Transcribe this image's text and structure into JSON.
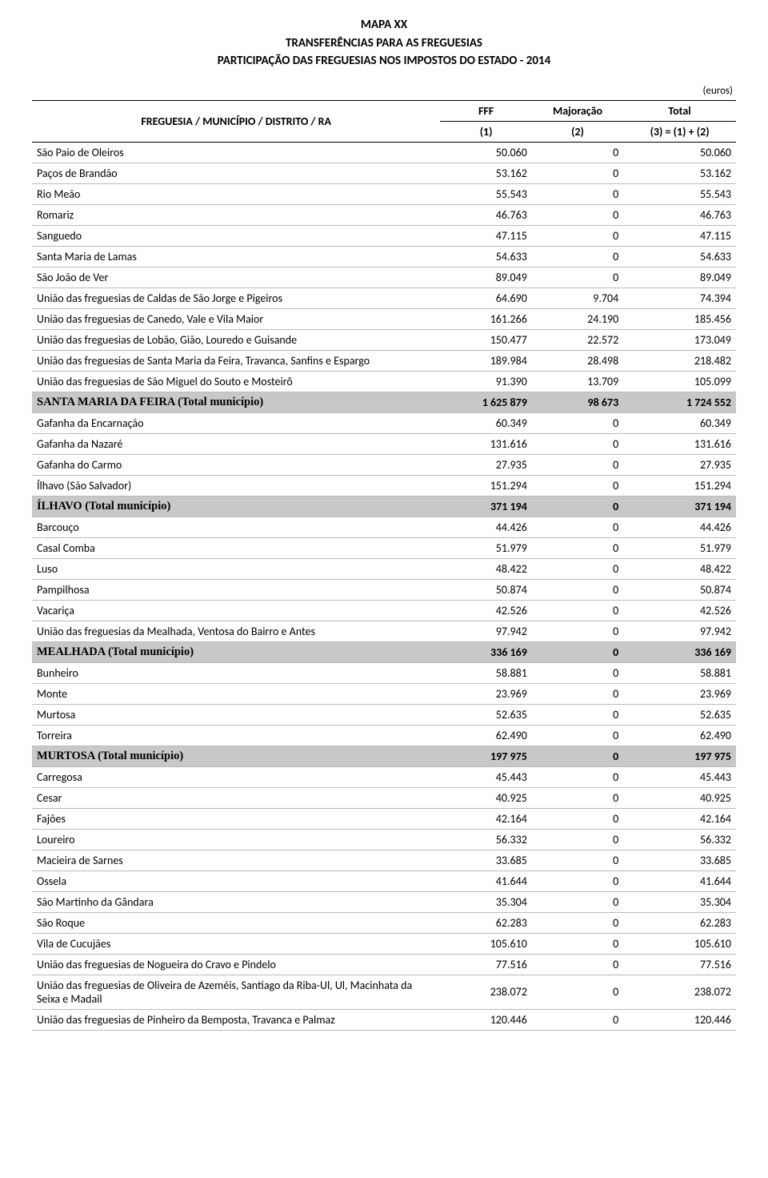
{
  "header": {
    "line1": "MAPA XX",
    "line2": "TRANSFERÊNCIAS PARA AS FREGUESIAS",
    "line3": "PARTICIPAÇÃO DAS FREGUESIAS NOS IMPOSTOS DO ESTADO - 2014",
    "currency_label": "(euros)"
  },
  "table": {
    "columns": {
      "name": "FREGUESIA / MUNICÍPIO / DISTRITO / RA",
      "fff": "FFF",
      "maj": "Majoração",
      "tot": "Total",
      "sub1": "(1)",
      "sub2": "(2)",
      "sub3": "(3) = (1) + (2)"
    },
    "rows": [
      {
        "name": "São Paio de Oleiros",
        "fff": "50.060",
        "maj": "0",
        "tot": "50.060",
        "total": false
      },
      {
        "name": "Paços de Brandão",
        "fff": "53.162",
        "maj": "0",
        "tot": "53.162",
        "total": false
      },
      {
        "name": "Rio Meão",
        "fff": "55.543",
        "maj": "0",
        "tot": "55.543",
        "total": false
      },
      {
        "name": "Romariz",
        "fff": "46.763",
        "maj": "0",
        "tot": "46.763",
        "total": false
      },
      {
        "name": "Sanguedo",
        "fff": "47.115",
        "maj": "0",
        "tot": "47.115",
        "total": false
      },
      {
        "name": "Santa Maria de Lamas",
        "fff": "54.633",
        "maj": "0",
        "tot": "54.633",
        "total": false
      },
      {
        "name": "São João de Ver",
        "fff": "89.049",
        "maj": "0",
        "tot": "89.049",
        "total": false
      },
      {
        "name": "União das freguesias de Caldas de São Jorge e Pigeiros",
        "fff": "64.690",
        "maj": "9.704",
        "tot": "74.394",
        "total": false
      },
      {
        "name": "União das freguesias de Canedo, Vale e Vila Maior",
        "fff": "161.266",
        "maj": "24.190",
        "tot": "185.456",
        "total": false
      },
      {
        "name": "União das freguesias de Lobão, Gião, Louredo e Guisande",
        "fff": "150.477",
        "maj": "22.572",
        "tot": "173.049",
        "total": false
      },
      {
        "name": "União das freguesias de Santa Maria da Feira, Travanca, Sanfins e Espargo",
        "fff": "189.984",
        "maj": "28.498",
        "tot": "218.482",
        "total": false
      },
      {
        "name": "União das freguesias de São Miguel do Souto e Mosteirô",
        "fff": "91.390",
        "maj": "13.709",
        "tot": "105.099",
        "total": false
      },
      {
        "name": "SANTA MARIA DA FEIRA (Total município)",
        "fff": "1 625 879",
        "maj": "98 673",
        "tot": "1 724 552",
        "total": true
      },
      {
        "name": "Gafanha da Encarnação",
        "fff": "60.349",
        "maj": "0",
        "tot": "60.349",
        "total": false
      },
      {
        "name": "Gafanha da Nazaré",
        "fff": "131.616",
        "maj": "0",
        "tot": "131.616",
        "total": false
      },
      {
        "name": "Gafanha do Carmo",
        "fff": "27.935",
        "maj": "0",
        "tot": "27.935",
        "total": false
      },
      {
        "name": "Ílhavo (São Salvador)",
        "fff": "151.294",
        "maj": "0",
        "tot": "151.294",
        "total": false
      },
      {
        "name": "ÍLHAVO (Total município)",
        "fff": "371 194",
        "maj": "0",
        "tot": "371 194",
        "total": true
      },
      {
        "name": "Barcouço",
        "fff": "44.426",
        "maj": "0",
        "tot": "44.426",
        "total": false
      },
      {
        "name": "Casal Comba",
        "fff": "51.979",
        "maj": "0",
        "tot": "51.979",
        "total": false
      },
      {
        "name": "Luso",
        "fff": "48.422",
        "maj": "0",
        "tot": "48.422",
        "total": false
      },
      {
        "name": "Pampilhosa",
        "fff": "50.874",
        "maj": "0",
        "tot": "50.874",
        "total": false
      },
      {
        "name": "Vacariça",
        "fff": "42.526",
        "maj": "0",
        "tot": "42.526",
        "total": false
      },
      {
        "name": "União das freguesias da Mealhada, Ventosa do Bairro e Antes",
        "fff": "97.942",
        "maj": "0",
        "tot": "97.942",
        "total": false
      },
      {
        "name": "MEALHADA (Total município)",
        "fff": "336 169",
        "maj": "0",
        "tot": "336 169",
        "total": true
      },
      {
        "name": "Bunheiro",
        "fff": "58.881",
        "maj": "0",
        "tot": "58.881",
        "total": false
      },
      {
        "name": "Monte",
        "fff": "23.969",
        "maj": "0",
        "tot": "23.969",
        "total": false
      },
      {
        "name": "Murtosa",
        "fff": "52.635",
        "maj": "0",
        "tot": "52.635",
        "total": false
      },
      {
        "name": "Torreira",
        "fff": "62.490",
        "maj": "0",
        "tot": "62.490",
        "total": false
      },
      {
        "name": "MURTOSA (Total município)",
        "fff": "197 975",
        "maj": "0",
        "tot": "197 975",
        "total": true
      },
      {
        "name": "Carregosa",
        "fff": "45.443",
        "maj": "0",
        "tot": "45.443",
        "total": false
      },
      {
        "name": "Cesar",
        "fff": "40.925",
        "maj": "0",
        "tot": "40.925",
        "total": false
      },
      {
        "name": "Fajões",
        "fff": "42.164",
        "maj": "0",
        "tot": "42.164",
        "total": false
      },
      {
        "name": "Loureiro",
        "fff": "56.332",
        "maj": "0",
        "tot": "56.332",
        "total": false
      },
      {
        "name": "Macieira de Sarnes",
        "fff": "33.685",
        "maj": "0",
        "tot": "33.685",
        "total": false
      },
      {
        "name": "Ossela",
        "fff": "41.644",
        "maj": "0",
        "tot": "41.644",
        "total": false
      },
      {
        "name": "São Martinho da Gândara",
        "fff": "35.304",
        "maj": "0",
        "tot": "35.304",
        "total": false
      },
      {
        "name": "São Roque",
        "fff": "62.283",
        "maj": "0",
        "tot": "62.283",
        "total": false
      },
      {
        "name": "Vila de Cucujães",
        "fff": "105.610",
        "maj": "0",
        "tot": "105.610",
        "total": false
      },
      {
        "name": "União das freguesias de Nogueira do Cravo e Pindelo",
        "fff": "77.516",
        "maj": "0",
        "tot": "77.516",
        "total": false
      },
      {
        "name": "União das freguesias de Oliveira de Azeméis, Santiago da Riba-Ul, Ul, Macinhata da Seixa e Madail",
        "fff": "238.072",
        "maj": "0",
        "tot": "238.072",
        "total": false
      },
      {
        "name": "União das freguesias de Pinheiro da Bemposta, Travanca e Palmaz",
        "fff": "120.446",
        "maj": "0",
        "tot": "120.446",
        "total": false
      }
    ]
  },
  "style": {
    "total_row_bg": "#c8c8c8",
    "border_color": "#000000",
    "row_border": "#bbbbbb",
    "font": "Calibri, Arial, sans-serif",
    "total_name_font": "Times New Roman, serif"
  }
}
